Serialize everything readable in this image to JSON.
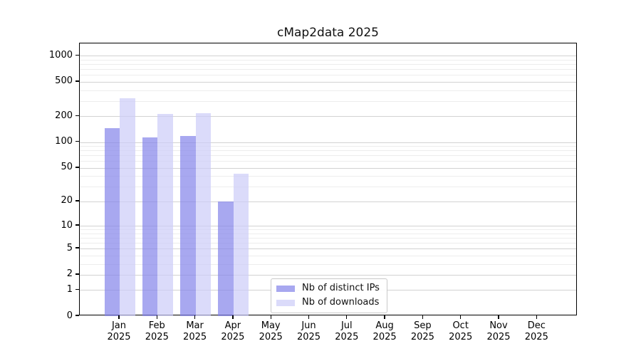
{
  "figure": {
    "background": "#ffffff"
  },
  "chart_data": {
    "type": "bar",
    "title": "cMap2data 2025",
    "categories": [
      "Jan 2025",
      "Feb 2025",
      "Mar 2025",
      "Apr 2025",
      "May 2025",
      "Jun 2025",
      "Jul 2025",
      "Aug 2025",
      "Sep 2025",
      "Oct 2025",
      "Nov 2025",
      "Dec 2025"
    ],
    "x_tick_line1": [
      "Jan",
      "Feb",
      "Mar",
      "Apr",
      "May",
      "Jun",
      "Jul",
      "Aug",
      "Sep",
      "Oct",
      "Nov",
      "Dec"
    ],
    "x_tick_line2": "2025",
    "series": [
      {
        "name": "Nb of distinct IPs",
        "color": "rgba(131,131,234,0.7)",
        "values": [
          145,
          114,
          118,
          20,
          0,
          0,
          0,
          0,
          0,
          0,
          0,
          0
        ]
      },
      {
        "name": "Nb of downloads",
        "color": "rgba(204,204,248,0.7)",
        "values": [
          326,
          212,
          219,
          43,
          0,
          0,
          0,
          0,
          0,
          0,
          0,
          0
        ]
      }
    ],
    "xlabel": "",
    "ylabel": "",
    "y_axis": {
      "scale": "log1p",
      "tick_values": [
        0,
        1,
        2,
        5,
        10,
        20,
        50,
        100,
        200,
        500,
        1000
      ],
      "minor_tick_values": [
        3,
        4,
        6,
        7,
        8,
        9,
        30,
        40,
        60,
        70,
        80,
        90,
        300,
        400,
        600,
        700,
        800,
        900
      ],
      "ylim": [
        0,
        1388
      ]
    },
    "legend": {
      "position": "lower center",
      "entries": [
        "Nb of distinct IPs",
        "Nb of downloads"
      ]
    },
    "grid": {
      "major_color": "#d2d2d2",
      "minor_color": "#ededed"
    }
  }
}
